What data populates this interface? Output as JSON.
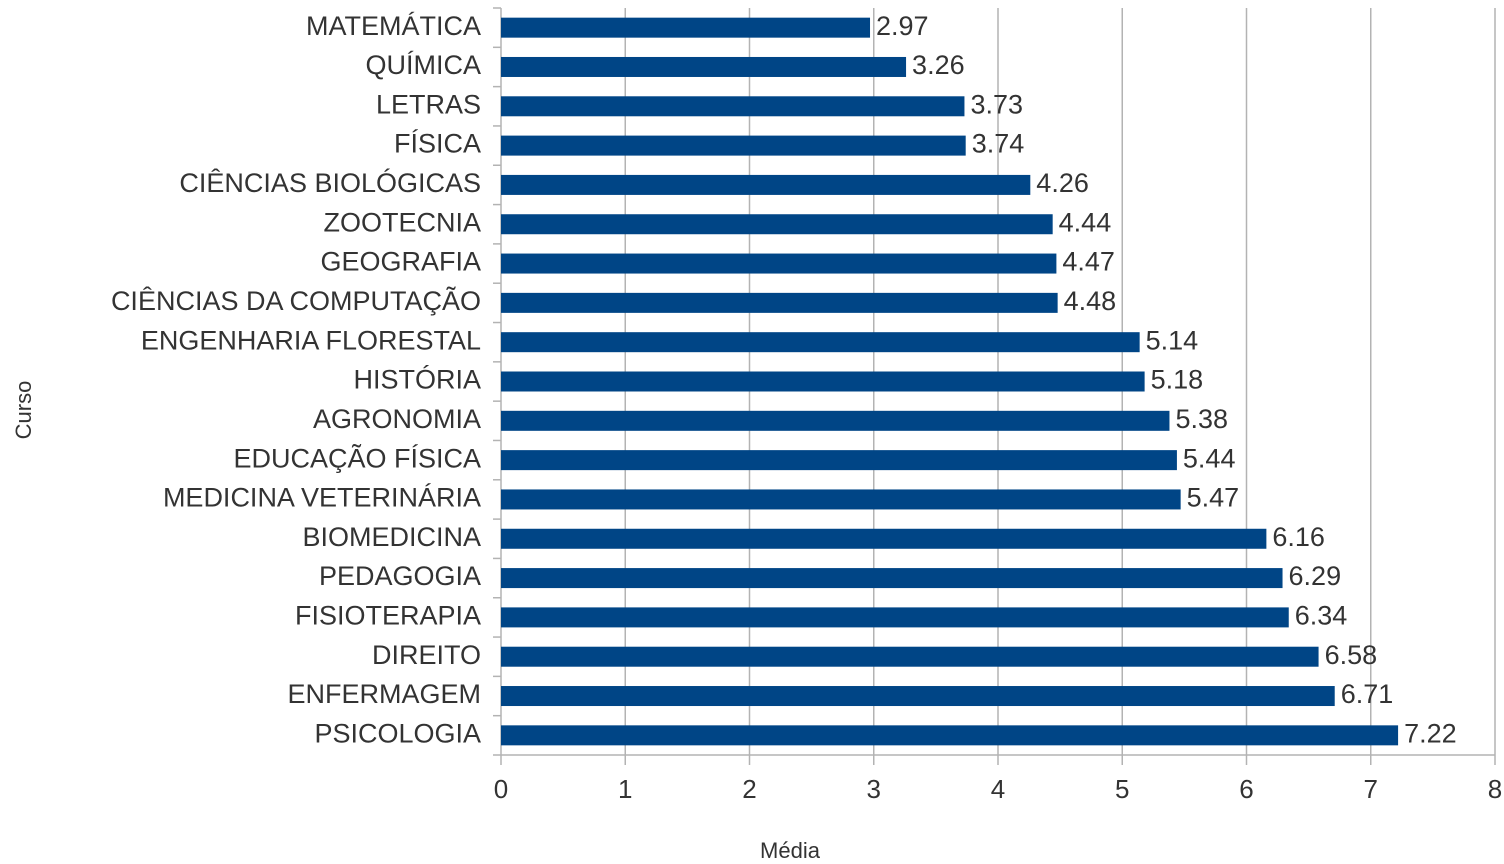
{
  "chart_data": {
    "type": "bar",
    "orientation": "horizontal",
    "x_label": "Média",
    "y_label": "Curso",
    "categories": [
      "MATEMÁTICA",
      "QUÍMICA",
      "LETRAS",
      "FÍSICA",
      "CIÊNCIAS BIOLÓGICAS",
      "ZOOTECNIA",
      "GEOGRAFIA",
      "CIÊNCIAS DA COMPUTAÇÃO",
      "ENGENHARIA FLORESTAL",
      "HISTÓRIA",
      "AGRONOMIA",
      "EDUCAÇÃO FÍSICA",
      "MEDICINA VETERINÁRIA",
      "BIOMEDICINA",
      "PEDAGOGIA",
      "FISIOTERAPIA",
      "DIREITO",
      "ENFERMAGEM",
      "PSICOLOGIA"
    ],
    "values": [
      2.97,
      3.26,
      3.73,
      3.74,
      4.26,
      4.44,
      4.47,
      4.48,
      5.14,
      5.18,
      5.38,
      5.44,
      5.47,
      6.16,
      6.29,
      6.34,
      6.58,
      6.71,
      7.22
    ],
    "color": "#004586",
    "xlim": [
      0,
      8
    ],
    "xticks": [
      0,
      1,
      2,
      3,
      4,
      5,
      6,
      7,
      8
    ],
    "grid": true
  }
}
